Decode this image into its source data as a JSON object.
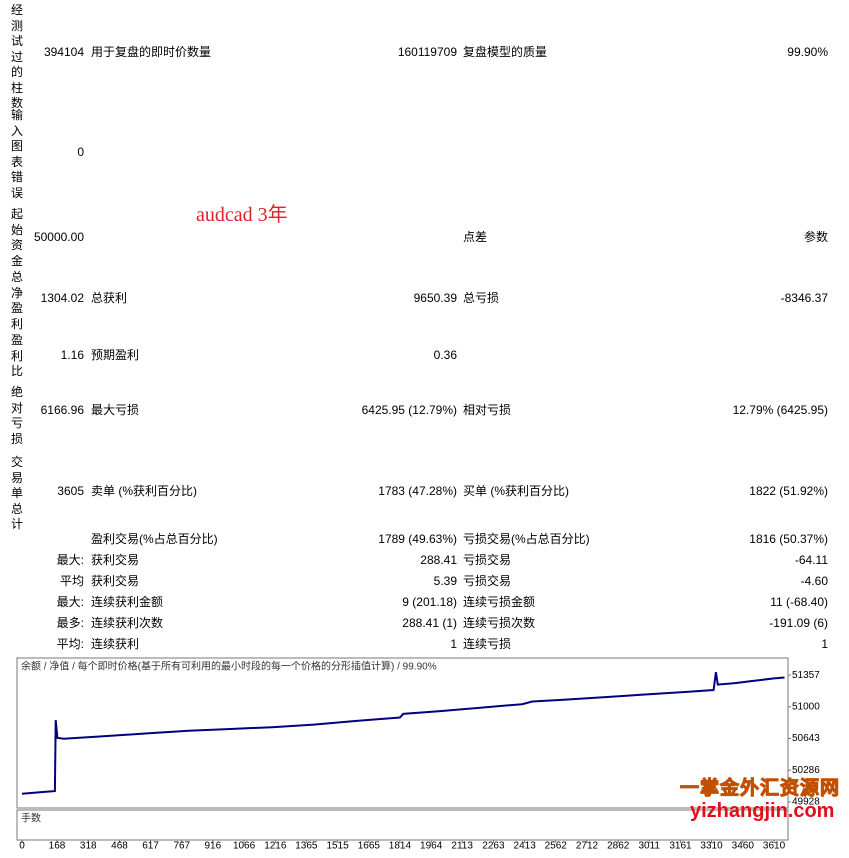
{
  "report": {
    "rows": [
      {
        "side": "经测试过的柱数",
        "value": "394104",
        "l1": "用于复盘的即时价数量",
        "v1": "160119709",
        "l2": "复盘模型的质量",
        "v2": "99.90%"
      },
      {
        "side": "输入图表错误",
        "value": "0"
      },
      {
        "side": "起始资金",
        "value": "50000.00",
        "l2": "点差",
        "v2": "参数"
      },
      {
        "side": "总净盈利",
        "value": "1304.02",
        "l1": "总获利",
        "v1": "9650.39",
        "l2": "总亏损",
        "v2": "-8346.37"
      },
      {
        "side": "盈利比",
        "value": "1.16",
        "l1": "预期盈利",
        "v1": "0.36"
      },
      {
        "side": "绝对亏损",
        "value": "6166.96",
        "l1": "最大亏损",
        "v1": "6425.95 (12.79%)",
        "l2": "相对亏损",
        "v2": "12.79% (6425.95)"
      },
      {
        "side": "交易单总计",
        "value": "3605",
        "l1": "卖单 (%获利百分比)",
        "v1": "1783 (47.28%)",
        "l2": "买单 (%获利百分比)",
        "v2": "1822 (51.92%)"
      },
      {
        "l1": "盈利交易(%占总百分比)",
        "v1": "1789 (49.63%)",
        "l2": "亏损交易(%占总百分比)",
        "v2": "1816 (50.37%)"
      },
      {
        "pre": "最大:",
        "l1": "获利交易",
        "v1": "288.41",
        "l2": "亏损交易",
        "v2": "-64.11"
      },
      {
        "pre": "平均",
        "l1": "获利交易",
        "v1": "5.39",
        "l2": "亏损交易",
        "v2": "-4.60"
      },
      {
        "pre": "最大:",
        "l1": "连续获利金额",
        "v1": "9 (201.18)",
        "l2": "连续亏损金额",
        "v2": "11 (-68.40)"
      },
      {
        "pre": "最多:",
        "l1": "连续获利次数",
        "v1": "288.41 (1)",
        "l2": "连续亏损次数",
        "v2": "-191.09 (6)"
      },
      {
        "pre": "平均:",
        "l1": "连续获利",
        "v1": "1",
        "l2": "连续亏损",
        "v2": "1"
      }
    ],
    "annotation": "audcad 3年"
  },
  "chart_data": {
    "type": "line",
    "title": "余额 / 净值 / 每个即时价格(基于所有可利用的最小时段的每一个价格的分形插值计算) / 99.90%",
    "volume_label": "手数",
    "x": [
      0,
      100,
      158,
      162,
      170,
      200,
      400,
      600,
      800,
      1000,
      1200,
      1400,
      1600,
      1814,
      1830,
      2000,
      2200,
      2400,
      2450,
      2600,
      2800,
      3000,
      3200,
      3320,
      3331,
      3340,
      3423,
      3500,
      3610,
      3660
    ],
    "series": [
      {
        "name": "余额",
        "color": "#000080",
        "values": [
          50020,
          50040,
          50050,
          50850,
          50650,
          50640,
          50670,
          50700,
          50730,
          50750,
          50770,
          50800,
          50840,
          50880,
          50920,
          50950,
          50990,
          51030,
          51060,
          51080,
          51110,
          51140,
          51170,
          51190,
          51390,
          51250,
          51267,
          51290,
          51320,
          51330
        ]
      }
    ],
    "xlim": [
      -24,
      3677
    ],
    "xticks": [
      0,
      168,
      318,
      468,
      617,
      767,
      916,
      1066,
      1216,
      1365,
      1515,
      1665,
      1814,
      1964,
      2113,
      2263,
      2413,
      2562,
      2712,
      2862,
      3011,
      3161,
      3310,
      3460,
      3610
    ],
    "ylim": [
      49860,
      51550
    ],
    "yticks": [
      49928,
      50286,
      50643,
      51000,
      51357
    ]
  },
  "watermark": {
    "name": "一掌金外汇资源网",
    "url": "yizhangjin.com"
  }
}
